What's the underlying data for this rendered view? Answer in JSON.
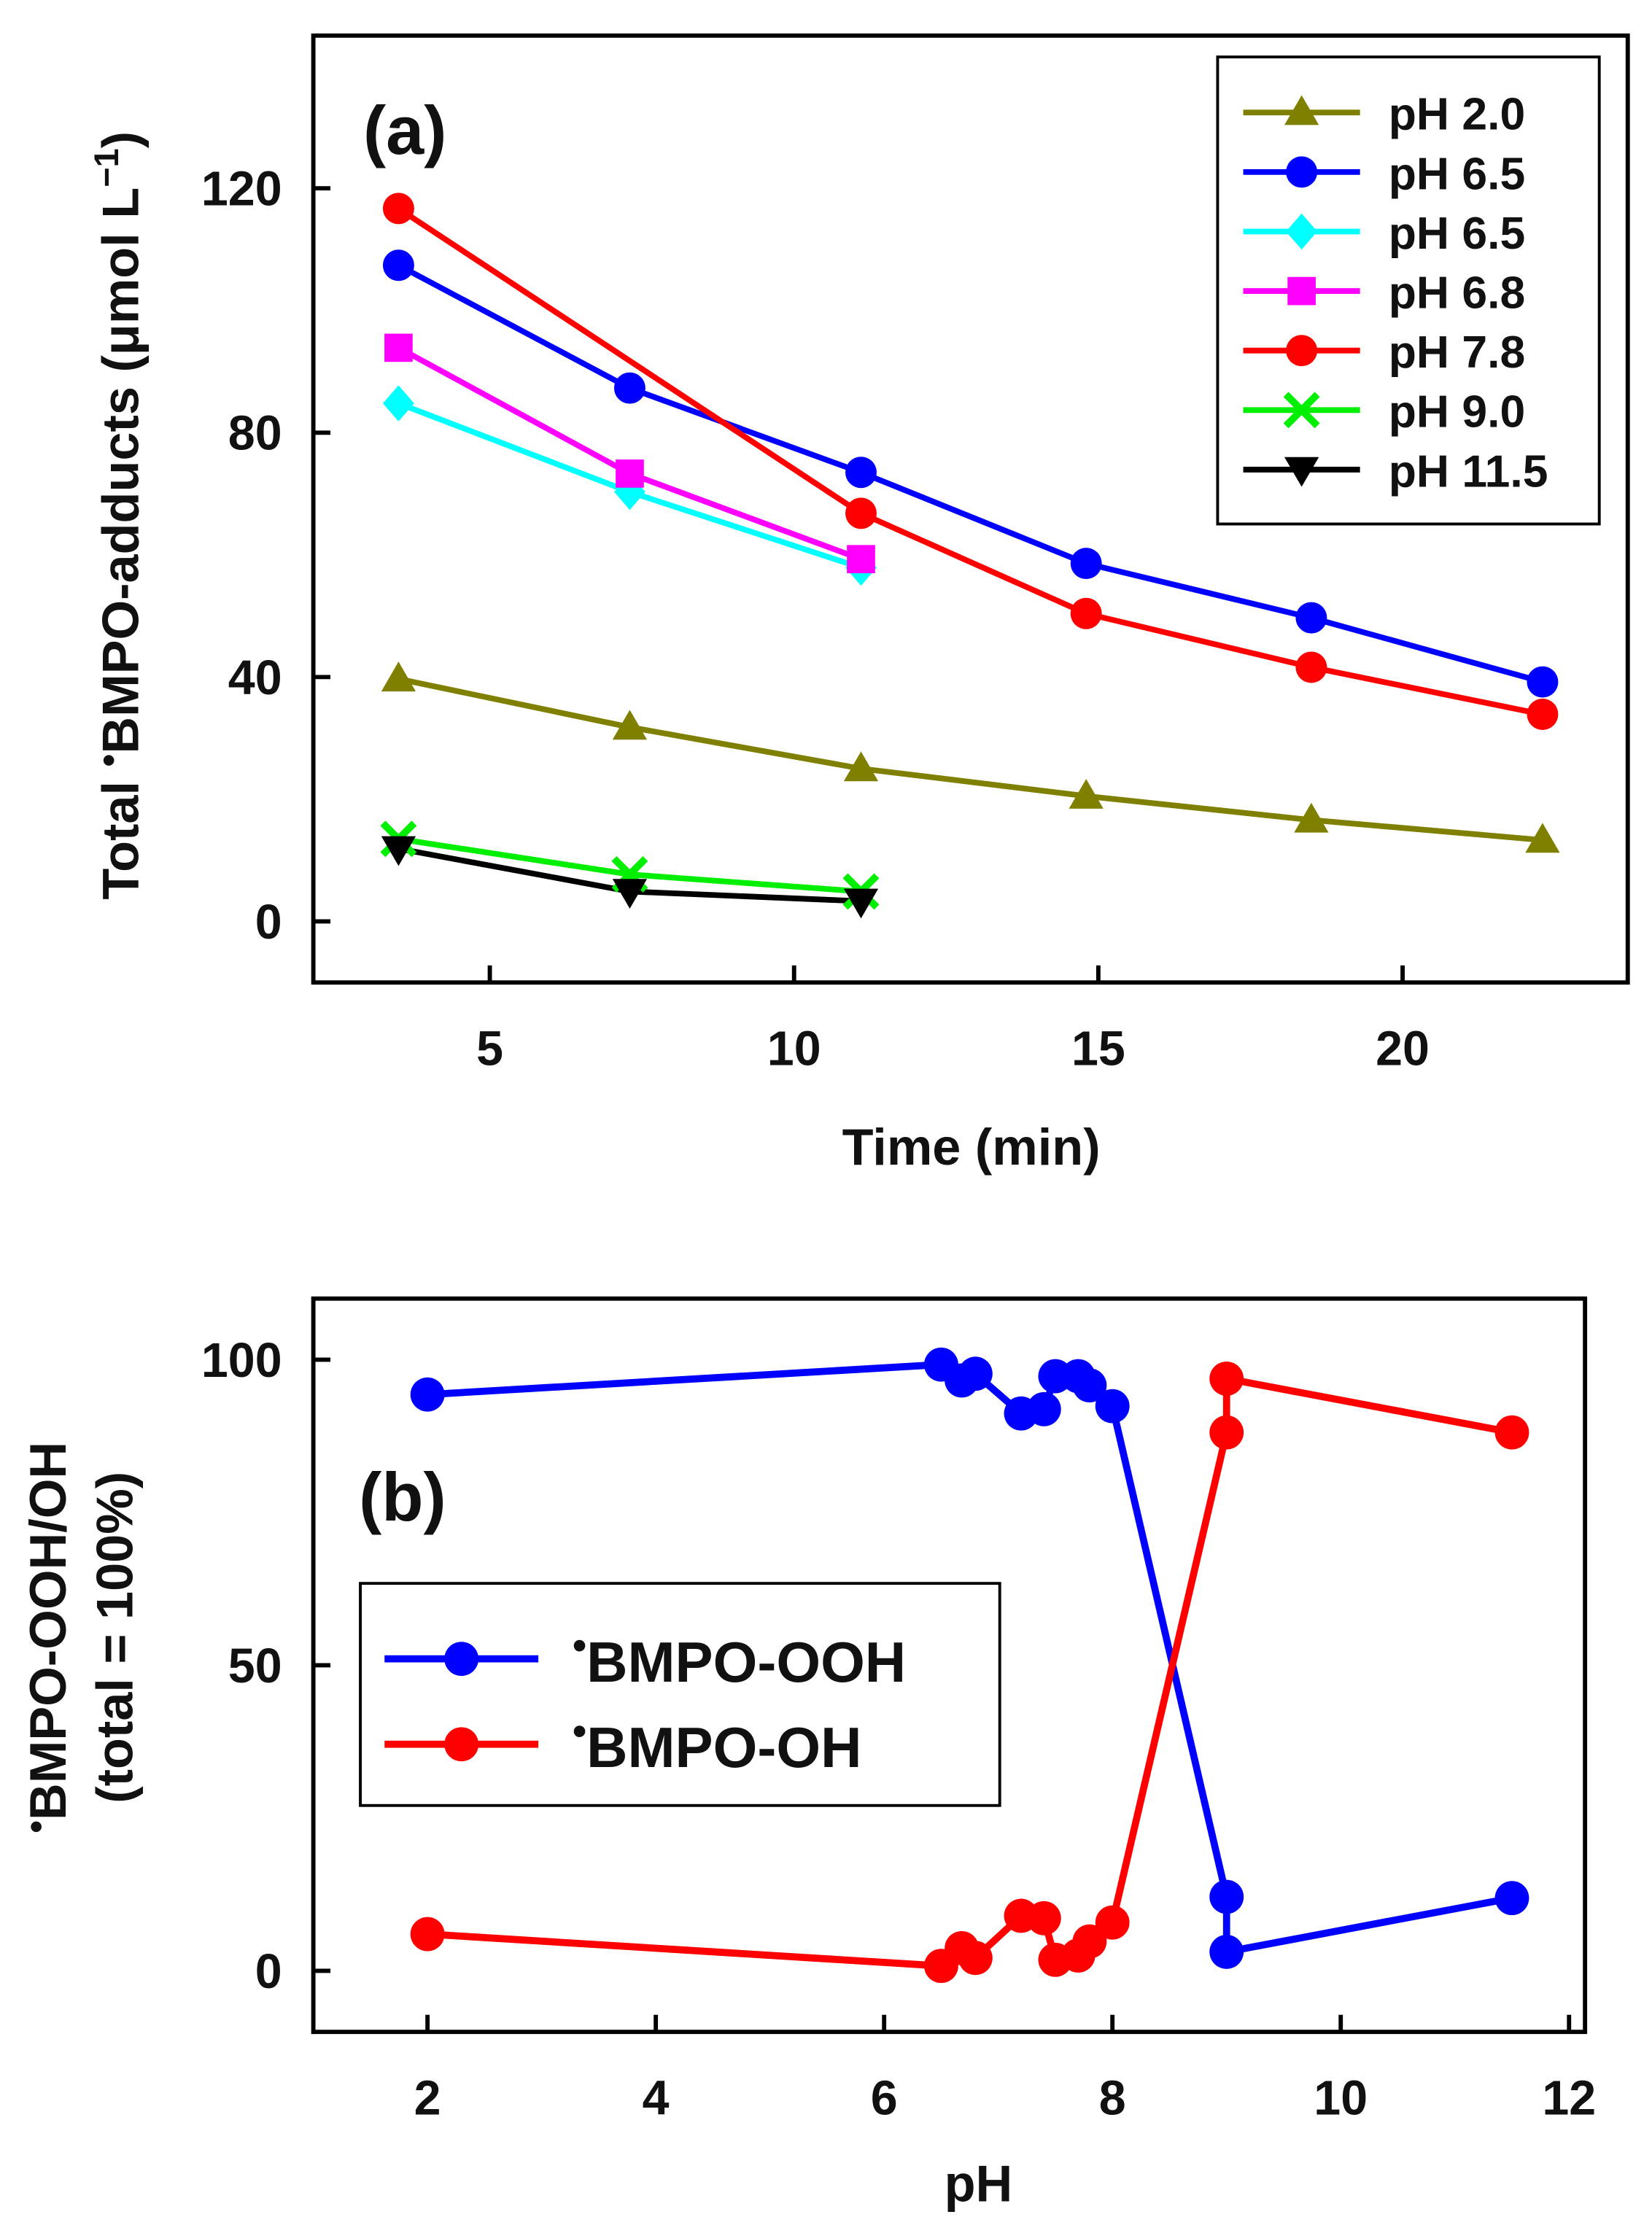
{
  "chart_data": [
    {
      "type": "line",
      "panel_label": "(a)",
      "xlabel": "Time (min)",
      "ylabel": "Total •BMPO-adducts (μmol L⁻¹)",
      "ylabel_parts": {
        "pre": "Total ",
        "dot": "•",
        "main": "BMPO-adducts (μmol L",
        "sup": "−1",
        "post": ")"
      },
      "xlim": [
        2.1,
        23.7
      ],
      "ylim": [
        -10,
        145
      ],
      "xticks": [
        5,
        10,
        15,
        20
      ],
      "yticks": [
        0,
        40,
        80,
        120
      ],
      "legend_position": "top-right",
      "series": [
        {
          "name": "pH 2.0",
          "color": "#808000",
          "marker": "triangle-up",
          "x": [
            3.5,
            7.3,
            11.1,
            14.8,
            18.5,
            22.3
          ],
          "y": [
            39.7,
            31.8,
            25.0,
            20.5,
            16.6,
            13.3
          ]
        },
        {
          "name": "pH 6.5",
          "color": "#0000ff",
          "marker": "circle",
          "x": [
            3.5,
            7.3,
            11.1,
            14.8,
            18.5,
            22.3
          ],
          "y": [
            107.4,
            87.3,
            73.5,
            58.6,
            49.7,
            39.2
          ]
        },
        {
          "name": "pH 6.5",
          "color": "#00ffff",
          "marker": "diamond",
          "x": [
            3.5,
            7.3,
            11.1
          ],
          "y": [
            84.8,
            70.3,
            57.9
          ]
        },
        {
          "name": "pH 6.8",
          "color": "#ff00ff",
          "marker": "square",
          "x": [
            3.5,
            7.3,
            11.1
          ],
          "y": [
            93.9,
            73.3,
            59.3
          ]
        },
        {
          "name": "pH 7.8",
          "color": "#ff0000",
          "marker": "circle",
          "x": [
            3.5,
            11.1,
            14.8,
            18.5,
            22.3
          ],
          "y": [
            116.7,
            66.8,
            50.4,
            41.6,
            33.9
          ]
        },
        {
          "name": "pH 9.0",
          "color": "#00ee00",
          "marker": "x",
          "x": [
            3.5,
            7.3,
            11.1
          ],
          "y": [
            13.5,
            7.7,
            4.9
          ]
        },
        {
          "name": "pH 11.5",
          "color": "#000000",
          "marker": "triangle-down",
          "x": [
            3.5,
            7.3,
            11.1
          ],
          "y": [
            11.9,
            4.9,
            3.3
          ]
        }
      ]
    },
    {
      "type": "line",
      "panel_label": "(b)",
      "xlabel": "pH",
      "ylabel": "•BMPO-OOH/OH (total = 100%)",
      "ylabel_line1": {
        "dot": "•",
        "main": "BMPO-OOH/OH"
      },
      "ylabel_line2": "(total = 100%)",
      "xlim": [
        1.0,
        12.14
      ],
      "ylim": [
        -10,
        110
      ],
      "xticks": [
        2,
        4,
        6,
        8,
        10,
        12
      ],
      "yticks": [
        0,
        50,
        100
      ],
      "legend_position": "center-left",
      "series": [
        {
          "name": "•BMPO-OOH",
          "label_dot": "•",
          "label_main": "BMPO-OOH",
          "color": "#0000ff",
          "marker": "circle",
          "x": [
            2.0,
            6.5,
            6.68,
            6.8,
            7.2,
            7.4,
            7.5,
            7.7,
            7.8,
            8.0,
            9.0,
            9.0,
            11.5
          ],
          "y": [
            94.3,
            99.2,
            96.6,
            97.7,
            91.2,
            91.9,
            97.3,
            97.3,
            95.8,
            92.4,
            12.1,
            3.1,
            11.9
          ]
        },
        {
          "name": "•BMPO-OH",
          "label_dot": "•",
          "label_main": "BMPO-OH",
          "color": "#ff0000",
          "marker": "circle",
          "x": [
            2.0,
            6.5,
            6.68,
            6.8,
            7.2,
            7.4,
            7.5,
            7.7,
            7.8,
            8.0,
            9.0,
            9.0,
            11.5
          ],
          "y": [
            6.0,
            0.8,
            3.7,
            2.1,
            9.0,
            8.6,
            1.8,
            2.5,
            4.8,
            7.9,
            88.1,
            96.9,
            88.1
          ]
        }
      ]
    }
  ]
}
